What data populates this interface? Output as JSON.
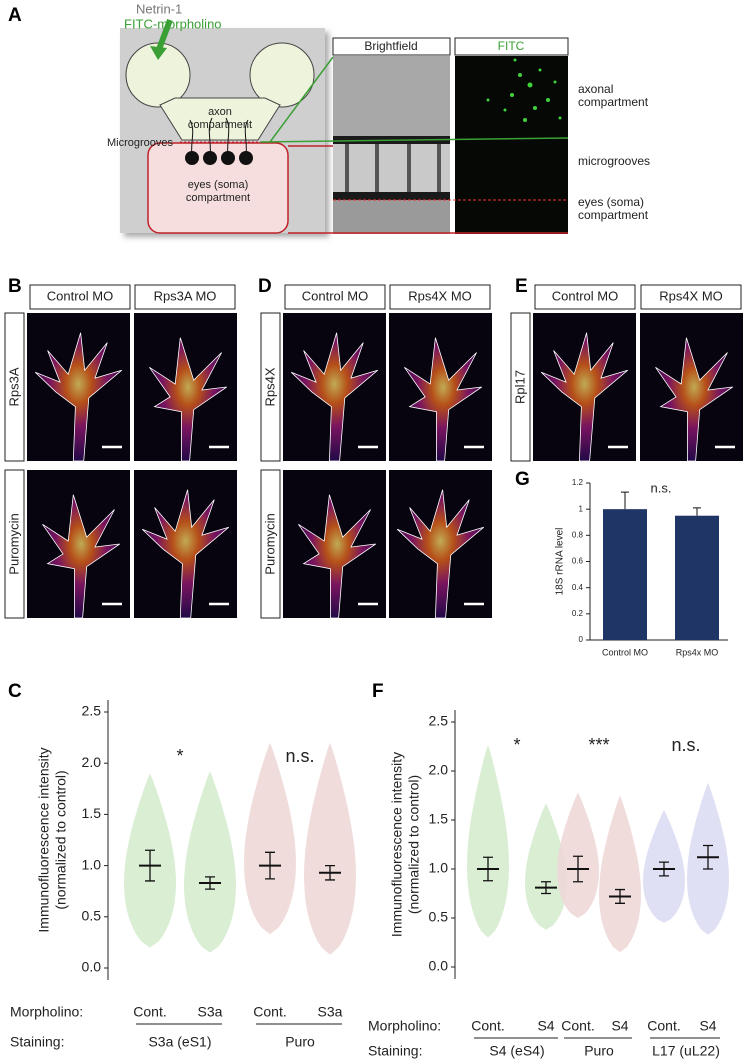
{
  "panels": {
    "A": {
      "label": "A",
      "netrin": "Netrin-1",
      "morpholino": "FITC-morpholino",
      "axon": [
        "axon",
        "compartment"
      ],
      "microgrooves": "Microgrooves",
      "soma": [
        "eyes (soma)",
        "compartment"
      ],
      "headers": [
        "Brightfield",
        "FITC"
      ],
      "right_labels": [
        [
          "axonal",
          "compartment"
        ],
        [
          "microgrooves"
        ],
        [
          "eyes (soma)",
          "compartment"
        ]
      ]
    },
    "B": {
      "label": "B",
      "headers": [
        "Control MO",
        "Rps3A MO"
      ],
      "rows": [
        "Rps3A",
        "Puromycin"
      ]
    },
    "D": {
      "label": "D",
      "headers": [
        "Control MO",
        "Rps4X MO"
      ],
      "rows": [
        "Rps4X",
        "Puromycin"
      ]
    },
    "E": {
      "label": "E",
      "headers": [
        "Control MO",
        "Rps4X MO"
      ],
      "rows": [
        "Rpl17"
      ]
    }
  },
  "chart_data": [
    {
      "type": "violin",
      "panel_label": "C",
      "ylabel": [
        "Immunofluorescence intensity",
        "(normalized to control)"
      ],
      "ylim": [
        0,
        2.5
      ],
      "yticks": [
        {
          "value": 0,
          "label": "0.0"
        },
        0.5,
        {
          "value": 1,
          "label": "1.0"
        },
        1.5,
        {
          "value": 2,
          "label": "2.0"
        },
        2.5
      ],
      "row_titles": [
        "Morpholino:",
        "Staining:"
      ],
      "categories": [
        "Cont.",
        "S3a",
        "Cont.",
        "S3a"
      ],
      "staining": [
        "S3a (eS1)",
        "Puro"
      ],
      "significance": [
        "*",
        "n.s."
      ],
      "means": [
        1.0,
        0.83,
        1.0,
        0.93
      ],
      "errors": [
        0.15,
        0.06,
        0.13,
        0.07
      ],
      "mins": [
        0.2,
        0.15,
        0.33,
        0.13
      ],
      "maxs": [
        1.9,
        1.92,
        2.2,
        2.2
      ],
      "colors": [
        "#d3ebcc",
        "#d3ebcc",
        "#eed6d6",
        "#eed6d6"
      ]
    },
    {
      "type": "violin",
      "panel_label": "F",
      "ylabel": [
        "Immunofluorescence intensity",
        "(normalized to control)"
      ],
      "ylim": [
        0,
        2.5
      ],
      "yticks": [
        {
          "value": 0,
          "label": "0.0"
        },
        0.5,
        {
          "value": 1,
          "label": "1.0"
        },
        1.5,
        {
          "value": 2,
          "label": "2.0"
        },
        2.5
      ],
      "row_titles": [
        "Morpholino:",
        "Staining:"
      ],
      "categories": [
        "Cont.",
        "S4",
        "Cont.",
        "S4",
        "Cont.",
        "S4"
      ],
      "staining": [
        "S4 (eS4)",
        "Puro",
        "L17 (uL22)"
      ],
      "significance": [
        "*",
        "***",
        "n.s."
      ],
      "means": [
        1.0,
        0.81,
        1.0,
        0.72,
        1.0,
        1.12
      ],
      "errors": [
        0.12,
        0.06,
        0.13,
        0.07,
        0.07,
        0.12
      ],
      "mins": [
        0.3,
        0.38,
        0.5,
        0.15,
        0.45,
        0.33
      ],
      "maxs": [
        2.27,
        1.67,
        1.78,
        1.75,
        1.6,
        1.88
      ],
      "colors": [
        "#d3ebcc",
        "#d3ebcc",
        "#eed6d6",
        "#eed6d6",
        "#dadaf2",
        "#dadaf2"
      ]
    },
    {
      "type": "bar",
      "panel_label": "G",
      "ylabel": "18S rRNA level",
      "annotation": "n.s.",
      "categories": [
        "Control MO",
        "Rps4x MO"
      ],
      "values": [
        1.0,
        0.95
      ],
      "errors": [
        0.13,
        0.06
      ],
      "color": "#1f3566",
      "ylim": [
        0,
        1.2
      ],
      "yticks": [
        0,
        0.2,
        0.4,
        0.6,
        0.8,
        1,
        1.2
      ]
    }
  ]
}
